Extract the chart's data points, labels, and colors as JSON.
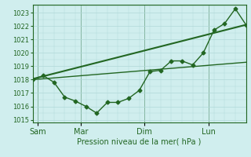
{
  "bg_color": "#d0eeee",
  "plot_bg_color": "#d0eeee",
  "grid_color": "#b0d8d8",
  "line_color": "#226622",
  "vline_color": "#226622",
  "xlabel": "Pression niveau de la mer( hPa )",
  "ylim": [
    1014.8,
    1023.6
  ],
  "yticks": [
    1015,
    1016,
    1017,
    1018,
    1019,
    1020,
    1021,
    1022,
    1023
  ],
  "day_labels": [
    "Sam",
    "Mar",
    "Dim",
    "Lun"
  ],
  "day_positions": [
    0.5,
    4.5,
    10.5,
    16.5
  ],
  "vline_positions": [
    0.5,
    4.5,
    10.5,
    16.5
  ],
  "xlim": [
    0,
    20
  ],
  "series": [
    {
      "x": [
        0,
        1,
        2,
        3,
        4,
        5,
        6,
        7,
        8,
        9,
        10,
        11,
        12,
        13,
        14,
        15,
        16,
        17,
        18,
        19,
        20
      ],
      "y": [
        1018.0,
        1018.3,
        1017.8,
        1016.7,
        1016.4,
        1016.0,
        1015.5,
        1016.3,
        1016.3,
        1016.6,
        1017.2,
        1018.6,
        1018.7,
        1019.4,
        1019.4,
        1019.1,
        1020.0,
        1021.7,
        1022.2,
        1023.3,
        1022.1
      ],
      "marker": "D",
      "markersize": 2.5,
      "linewidth": 1.0,
      "zorder": 3
    },
    {
      "x": [
        0,
        20
      ],
      "y": [
        1018.05,
        1022.1
      ],
      "marker": null,
      "linewidth": 1.5,
      "zorder": 2
    },
    {
      "x": [
        0,
        20
      ],
      "y": [
        1018.0,
        1019.3
      ],
      "marker": null,
      "linewidth": 1.0,
      "zorder": 2
    }
  ]
}
